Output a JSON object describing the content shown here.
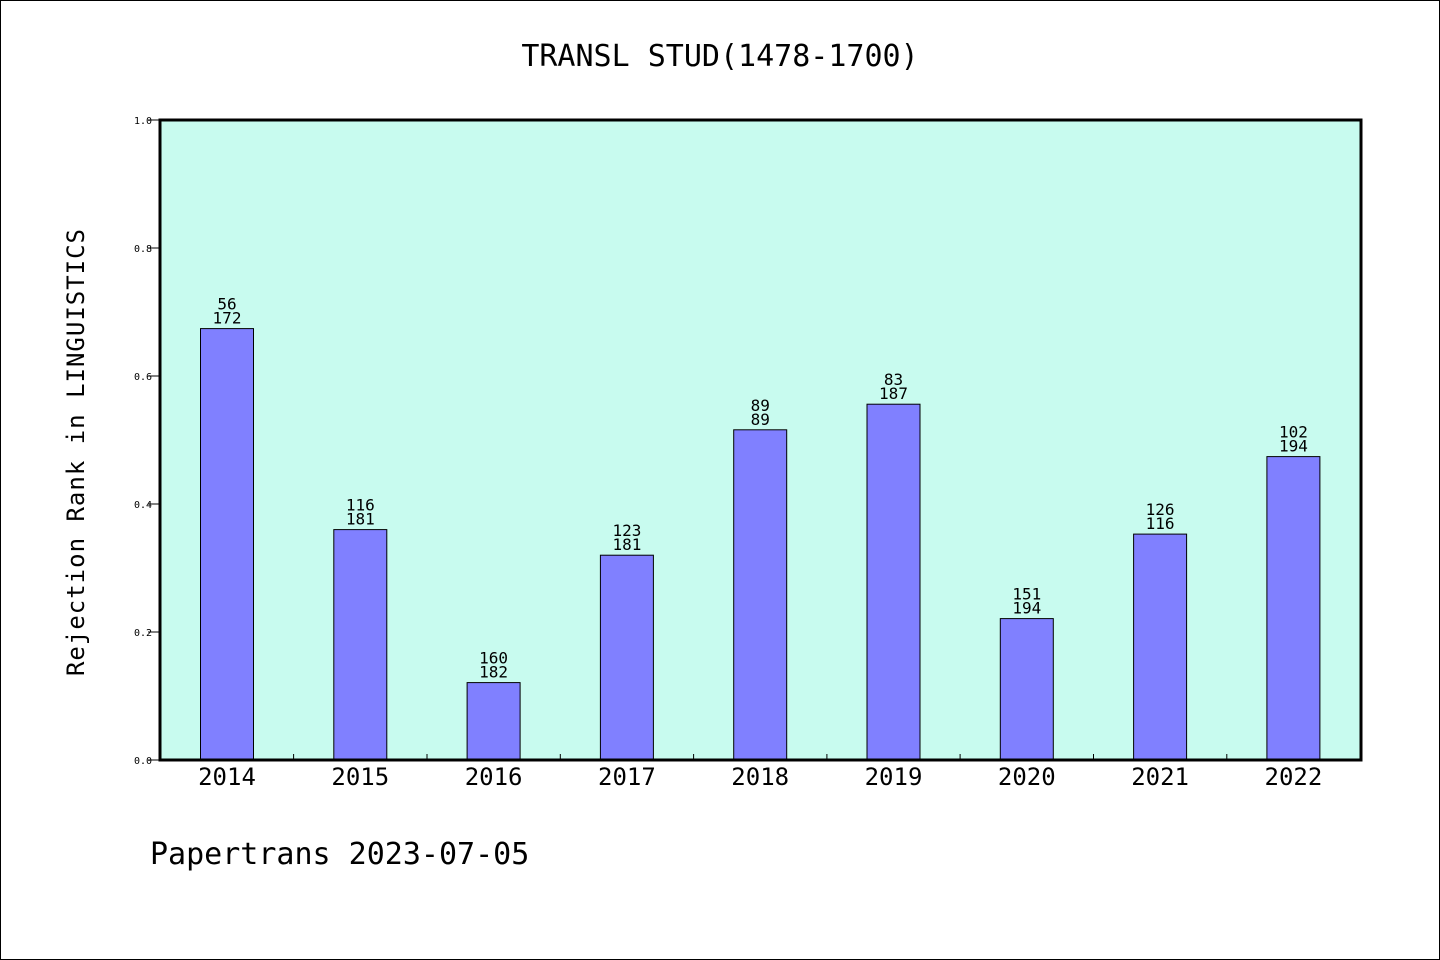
{
  "footer": "Papertrans 2023-07-05",
  "colors": {
    "plot_background": "#c8fbef",
    "bar_fill": "#8080ff",
    "bar_stroke": "#000000"
  },
  "chart_data": {
    "type": "bar",
    "title": "TRANSL STUD(1478-1700)",
    "xlabel": "",
    "ylabel": "Rejection Rank in LINGUISTICS",
    "ylim": [
      0,
      1.0
    ],
    "yticks": [
      "0.0",
      "0.2",
      "0.4",
      "0.6",
      "0.8",
      "1.0"
    ],
    "categories": [
      "2014",
      "2015",
      "2016",
      "2017",
      "2018",
      "2019",
      "2020",
      "2021",
      "2022"
    ],
    "values": [
      0.674,
      0.36,
      0.121,
      0.32,
      0.516,
      0.556,
      0.221,
      0.353,
      0.474
    ],
    "bar_labels_top": [
      "56",
      "116",
      "160",
      "123",
      "89",
      "83",
      "151",
      "126",
      "102"
    ],
    "bar_labels_bottom": [
      "172",
      "181",
      "182",
      "181",
      "89",
      "187",
      "194",
      "116",
      "194"
    ],
    "grid": false,
    "legend": "none"
  }
}
